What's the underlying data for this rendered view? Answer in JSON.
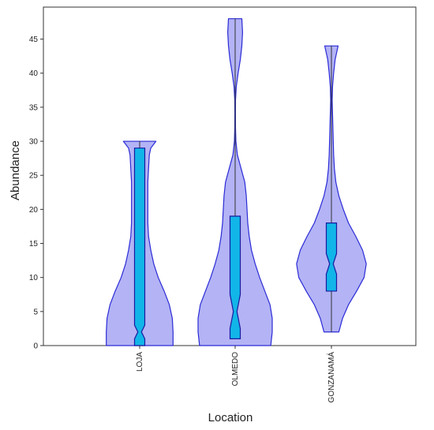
{
  "chart_data": {
    "type": "violin",
    "title": "",
    "xlabel": "Location",
    "ylabel": "Abundance",
    "ylim": [
      0,
      49.7
    ],
    "yticks": [
      0,
      5,
      10,
      15,
      20,
      25,
      30,
      35,
      40,
      45
    ],
    "grid": false,
    "colors": {
      "violin_fill": "#b3b3f5",
      "violin_stroke": "#2b2bd6",
      "box_fill": "#12b5e8",
      "box_stroke": "#1a1aa0",
      "axis": "#333333"
    },
    "categories": [
      "LOJA",
      "OLMEDO",
      "GONZANAMÁ"
    ],
    "groups": [
      {
        "name": "LOJA",
        "min": 0,
        "q1": 0,
        "median": 2,
        "q3": 29,
        "max": 30,
        "notch_low": 1,
        "notch_high": 3,
        "density": [
          [
            0,
            45
          ],
          [
            2,
            45
          ],
          [
            4,
            44
          ],
          [
            6,
            40
          ],
          [
            8,
            33
          ],
          [
            10,
            25
          ],
          [
            12,
            19
          ],
          [
            14,
            15
          ],
          [
            16,
            12
          ],
          [
            18,
            11
          ],
          [
            20,
            11
          ],
          [
            22,
            11
          ],
          [
            24,
            11
          ],
          [
            26,
            12
          ],
          [
            28,
            13
          ],
          [
            29,
            15
          ],
          [
            30,
            22
          ]
        ]
      },
      {
        "name": "OLMEDO",
        "min": 1,
        "q1": 1,
        "median": 5,
        "q3": 19,
        "max": 48,
        "notch_low": 2.5,
        "notch_high": 7.5,
        "density": [
          [
            0,
            48
          ],
          [
            2,
            50
          ],
          [
            4,
            50
          ],
          [
            6,
            47
          ],
          [
            8,
            40
          ],
          [
            10,
            33
          ],
          [
            12,
            27
          ],
          [
            14,
            22
          ],
          [
            16,
            19
          ],
          [
            18,
            17
          ],
          [
            20,
            16
          ],
          [
            22,
            15
          ],
          [
            24,
            13
          ],
          [
            26,
            8
          ],
          [
            28,
            3
          ],
          [
            30,
            1
          ],
          [
            32,
            0.5
          ],
          [
            34,
            0.4
          ],
          [
            36,
            0.5
          ],
          [
            38,
            1.5
          ],
          [
            40,
            4
          ],
          [
            42,
            7
          ],
          [
            44,
            9
          ],
          [
            46,
            10
          ],
          [
            48,
            9
          ]
        ]
      },
      {
        "name": "GONZANAMÁ",
        "min": 2,
        "q1": 8,
        "median": 12,
        "q3": 18,
        "max": 44,
        "notch_low": 10.5,
        "notch_high": 13.5,
        "density": [
          [
            2,
            10
          ],
          [
            4,
            15
          ],
          [
            6,
            23
          ],
          [
            8,
            34
          ],
          [
            10,
            44
          ],
          [
            12,
            47
          ],
          [
            14,
            42
          ],
          [
            16,
            33
          ],
          [
            18,
            23
          ],
          [
            20,
            16
          ],
          [
            22,
            10
          ],
          [
            24,
            6
          ],
          [
            26,
            4
          ],
          [
            28,
            3
          ],
          [
            30,
            2.5
          ],
          [
            32,
            2
          ],
          [
            34,
            1.5
          ],
          [
            36,
            1
          ],
          [
            38,
            1.5
          ],
          [
            40,
            3
          ],
          [
            42,
            5
          ],
          [
            44,
            9
          ]
        ]
      }
    ]
  }
}
